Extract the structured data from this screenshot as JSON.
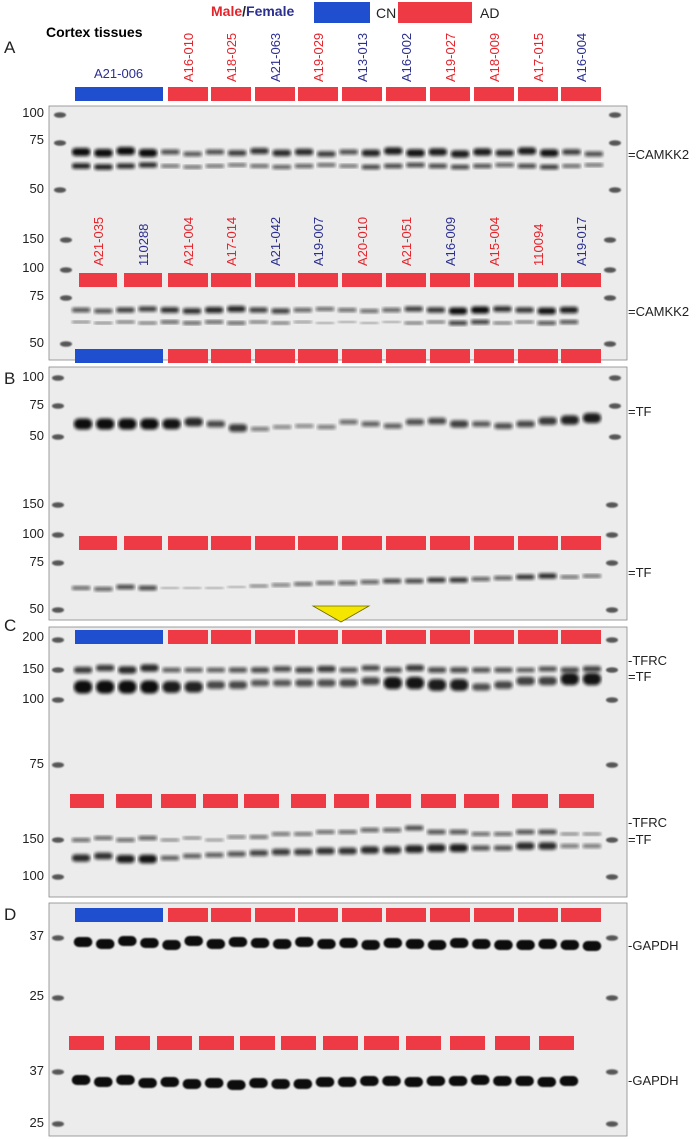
{
  "header": {
    "title": "Cortex tissues",
    "sex_key_male": "Male",
    "sex_key_slash": "/",
    "sex_key_female": "Female",
    "legend": [
      {
        "label": "CN",
        "color": "#1f4fcf"
      },
      {
        "label": "AD",
        "color": "#ee3a44"
      }
    ]
  },
  "colors": {
    "cn": "#1f4fcf",
    "ad": "#ee3a44",
    "male_text": "#e3242b",
    "female_text": "#2b2f8f",
    "membrane": "#ececec",
    "band": "#111111",
    "arrow": "#f5e600"
  },
  "panels": [
    {
      "letter": "A",
      "top_samples": [
        {
          "id": "A21-006",
          "sex": "female",
          "group": "CN"
        },
        {
          "id": "A16-010",
          "sex": "male",
          "group": "AD"
        },
        {
          "id": "A18-025",
          "sex": "male",
          "group": "AD"
        },
        {
          "id": "A21-063",
          "sex": "female",
          "group": "AD"
        },
        {
          "id": "A19-029",
          "sex": "male",
          "group": "AD"
        },
        {
          "id": "A13-013",
          "sex": "female",
          "group": "AD"
        },
        {
          "id": "A16-002",
          "sex": "female",
          "group": "AD"
        },
        {
          "id": "A19-027",
          "sex": "male",
          "group": "AD"
        },
        {
          "id": "A18-009",
          "sex": "male",
          "group": "AD"
        },
        {
          "id": "A17-015",
          "sex": "male",
          "group": "AD"
        },
        {
          "id": "A16-004",
          "sex": "female",
          "group": "AD"
        }
      ],
      "bottom_samples": [
        {
          "id": "A21-035",
          "sex": "male",
          "group": "AD"
        },
        {
          "id": "110288",
          "sex": "female",
          "group": "AD"
        },
        {
          "id": "A21-004",
          "sex": "male",
          "group": "AD"
        },
        {
          "id": "A17-014",
          "sex": "male",
          "group": "AD"
        },
        {
          "id": "A21-042",
          "sex": "female",
          "group": "AD"
        },
        {
          "id": "A19-007",
          "sex": "female",
          "group": "AD"
        },
        {
          "id": "A20-010",
          "sex": "male",
          "group": "AD"
        },
        {
          "id": "A21-051",
          "sex": "male",
          "group": "AD"
        },
        {
          "id": "A16-009",
          "sex": "female",
          "group": "AD"
        },
        {
          "id": "A15-004",
          "sex": "male",
          "group": "AD"
        },
        {
          "id": "110094",
          "sex": "male",
          "group": "AD"
        },
        {
          "id": "A19-017",
          "sex": "female",
          "group": "AD"
        }
      ],
      "mw_top": [
        "100",
        "75",
        "50"
      ],
      "mw_bottom": [
        "150",
        "100",
        "75",
        "50"
      ],
      "band_labels": [
        "=CAMKK2",
        "=CAMKK2"
      ]
    },
    {
      "letter": "B",
      "mw_top": [
        "100",
        "75",
        "50"
      ],
      "mw_bottom": [
        "150",
        "100",
        "75",
        "50"
      ],
      "band_labels": [
        "=TF",
        "=TF"
      ]
    },
    {
      "letter": "C",
      "mw_top": [
        "200",
        "150",
        "100",
        "75"
      ],
      "mw_bottom": [
        "150",
        "100"
      ],
      "band_labels_top": [
        "-TFRC",
        "=TF"
      ],
      "band_labels_bottom": [
        "-TFRC",
        "=TF"
      ]
    },
    {
      "letter": "D",
      "mw_top": [
        "37",
        "25"
      ],
      "mw_bottom": [
        "37",
        "25"
      ],
      "band_labels": [
        "-GAPDH",
        "-GAPDH"
      ]
    }
  ]
}
